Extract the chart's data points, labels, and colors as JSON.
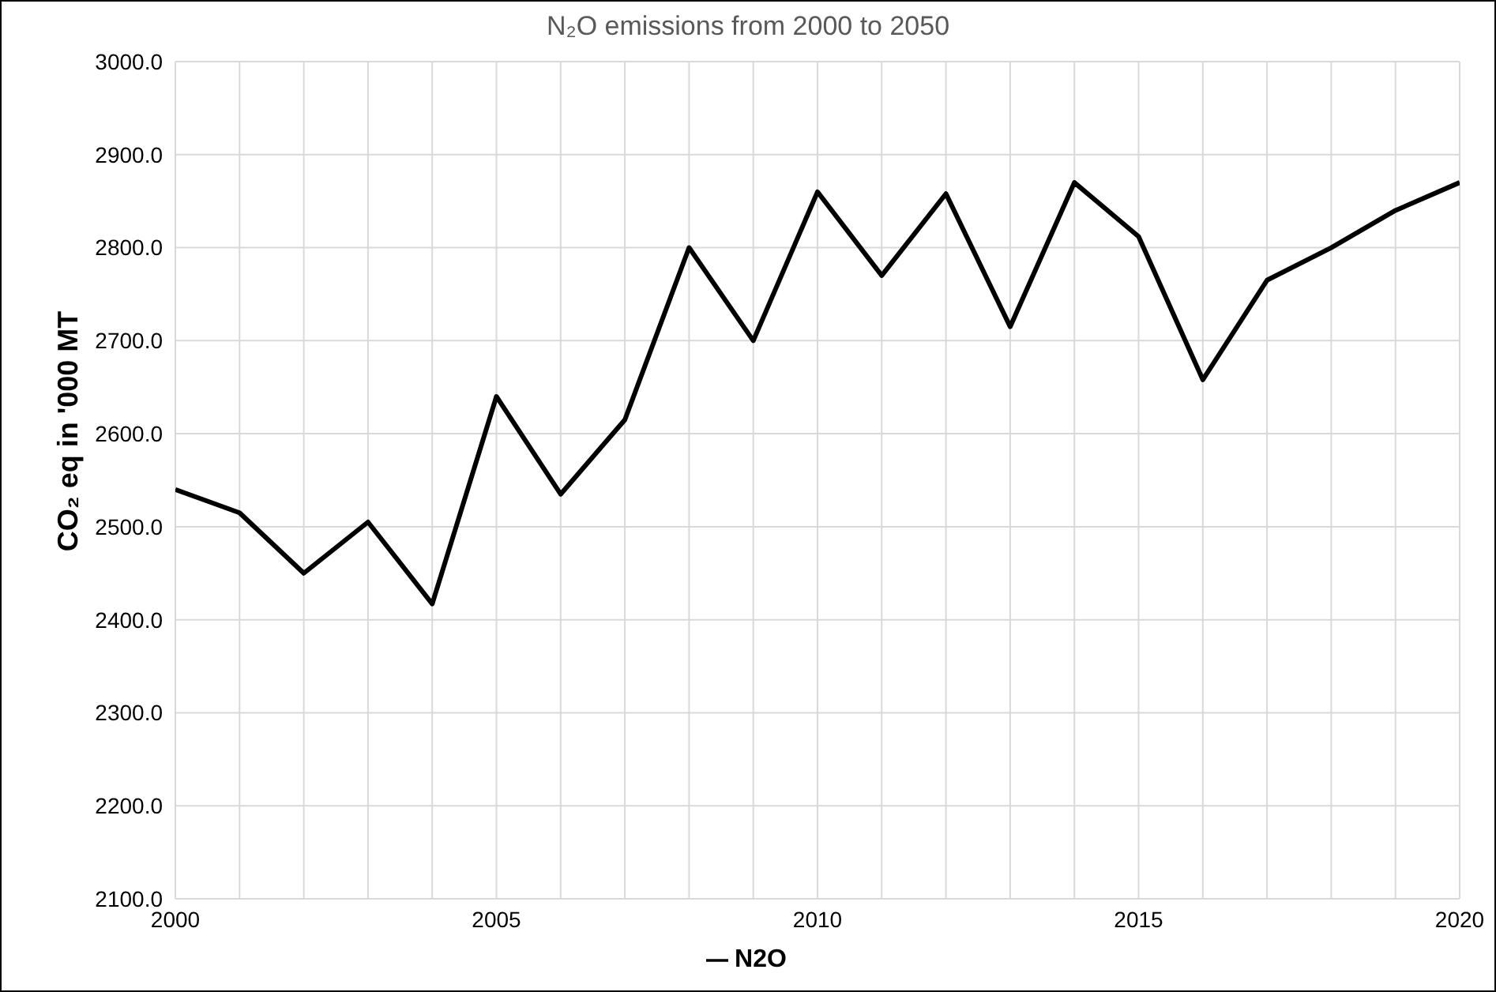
{
  "chart_data": {
    "type": "line",
    "title": "N₂O emissions from 2000 to 2050",
    "ylabel": "CO₂ eq in '000 MT",
    "x": [
      2000,
      2001,
      2002,
      2003,
      2004,
      2005,
      2006,
      2007,
      2008,
      2009,
      2010,
      2011,
      2012,
      2013,
      2014,
      2015,
      2016,
      2017,
      2018,
      2019,
      2020
    ],
    "series": [
      {
        "name": "N2O",
        "color": "#000000",
        "values": [
          2540,
          2515,
          2450,
          2505,
          2417,
          2640,
          2535,
          2615,
          2800,
          2700,
          2860,
          2770,
          2858,
          2715,
          2870,
          2812,
          2658,
          2765,
          2800,
          2840,
          2870
        ]
      }
    ],
    "xlim": [
      2000,
      2020
    ],
    "xticks": [
      2000,
      {
        "value": 2001,
        "label": null
      },
      {
        "value": 2002,
        "label": null
      },
      {
        "value": 2003,
        "label": null
      },
      {
        "value": 2004,
        "label": null
      },
      2005,
      {
        "value": 2006,
        "label": null
      },
      {
        "value": 2007,
        "label": null
      },
      {
        "value": 2008,
        "label": null
      },
      {
        "value": 2009,
        "label": null
      },
      2010,
      {
        "value": 2011,
        "label": null
      },
      {
        "value": 2012,
        "label": null
      },
      {
        "value": 2013,
        "label": null
      },
      {
        "value": 2014,
        "label": null
      },
      2015,
      {
        "value": 2016,
        "label": null
      },
      {
        "value": 2017,
        "label": null
      },
      {
        "value": 2018,
        "label": null
      },
      {
        "value": 2019,
        "label": null
      },
      2020
    ],
    "ylim": [
      2100,
      3000
    ],
    "yticks": [
      {
        "value": 2100,
        "label": "2100.0"
      },
      {
        "value": 2200,
        "label": "2200.0"
      },
      {
        "value": 2300,
        "label": "2300.0"
      },
      {
        "value": 2400,
        "label": "2400.0"
      },
      {
        "value": 2500,
        "label": "2500.0"
      },
      {
        "value": 2600,
        "label": "2600.0"
      },
      {
        "value": 2700,
        "label": "2700.0"
      },
      {
        "value": 2800,
        "label": "2800.0"
      },
      {
        "value": 2900,
        "label": "2900.0"
      },
      {
        "value": 3000,
        "label": "3000.0"
      }
    ],
    "grid": true,
    "legend": "bottom",
    "marker": "none",
    "line_style": "solid"
  }
}
